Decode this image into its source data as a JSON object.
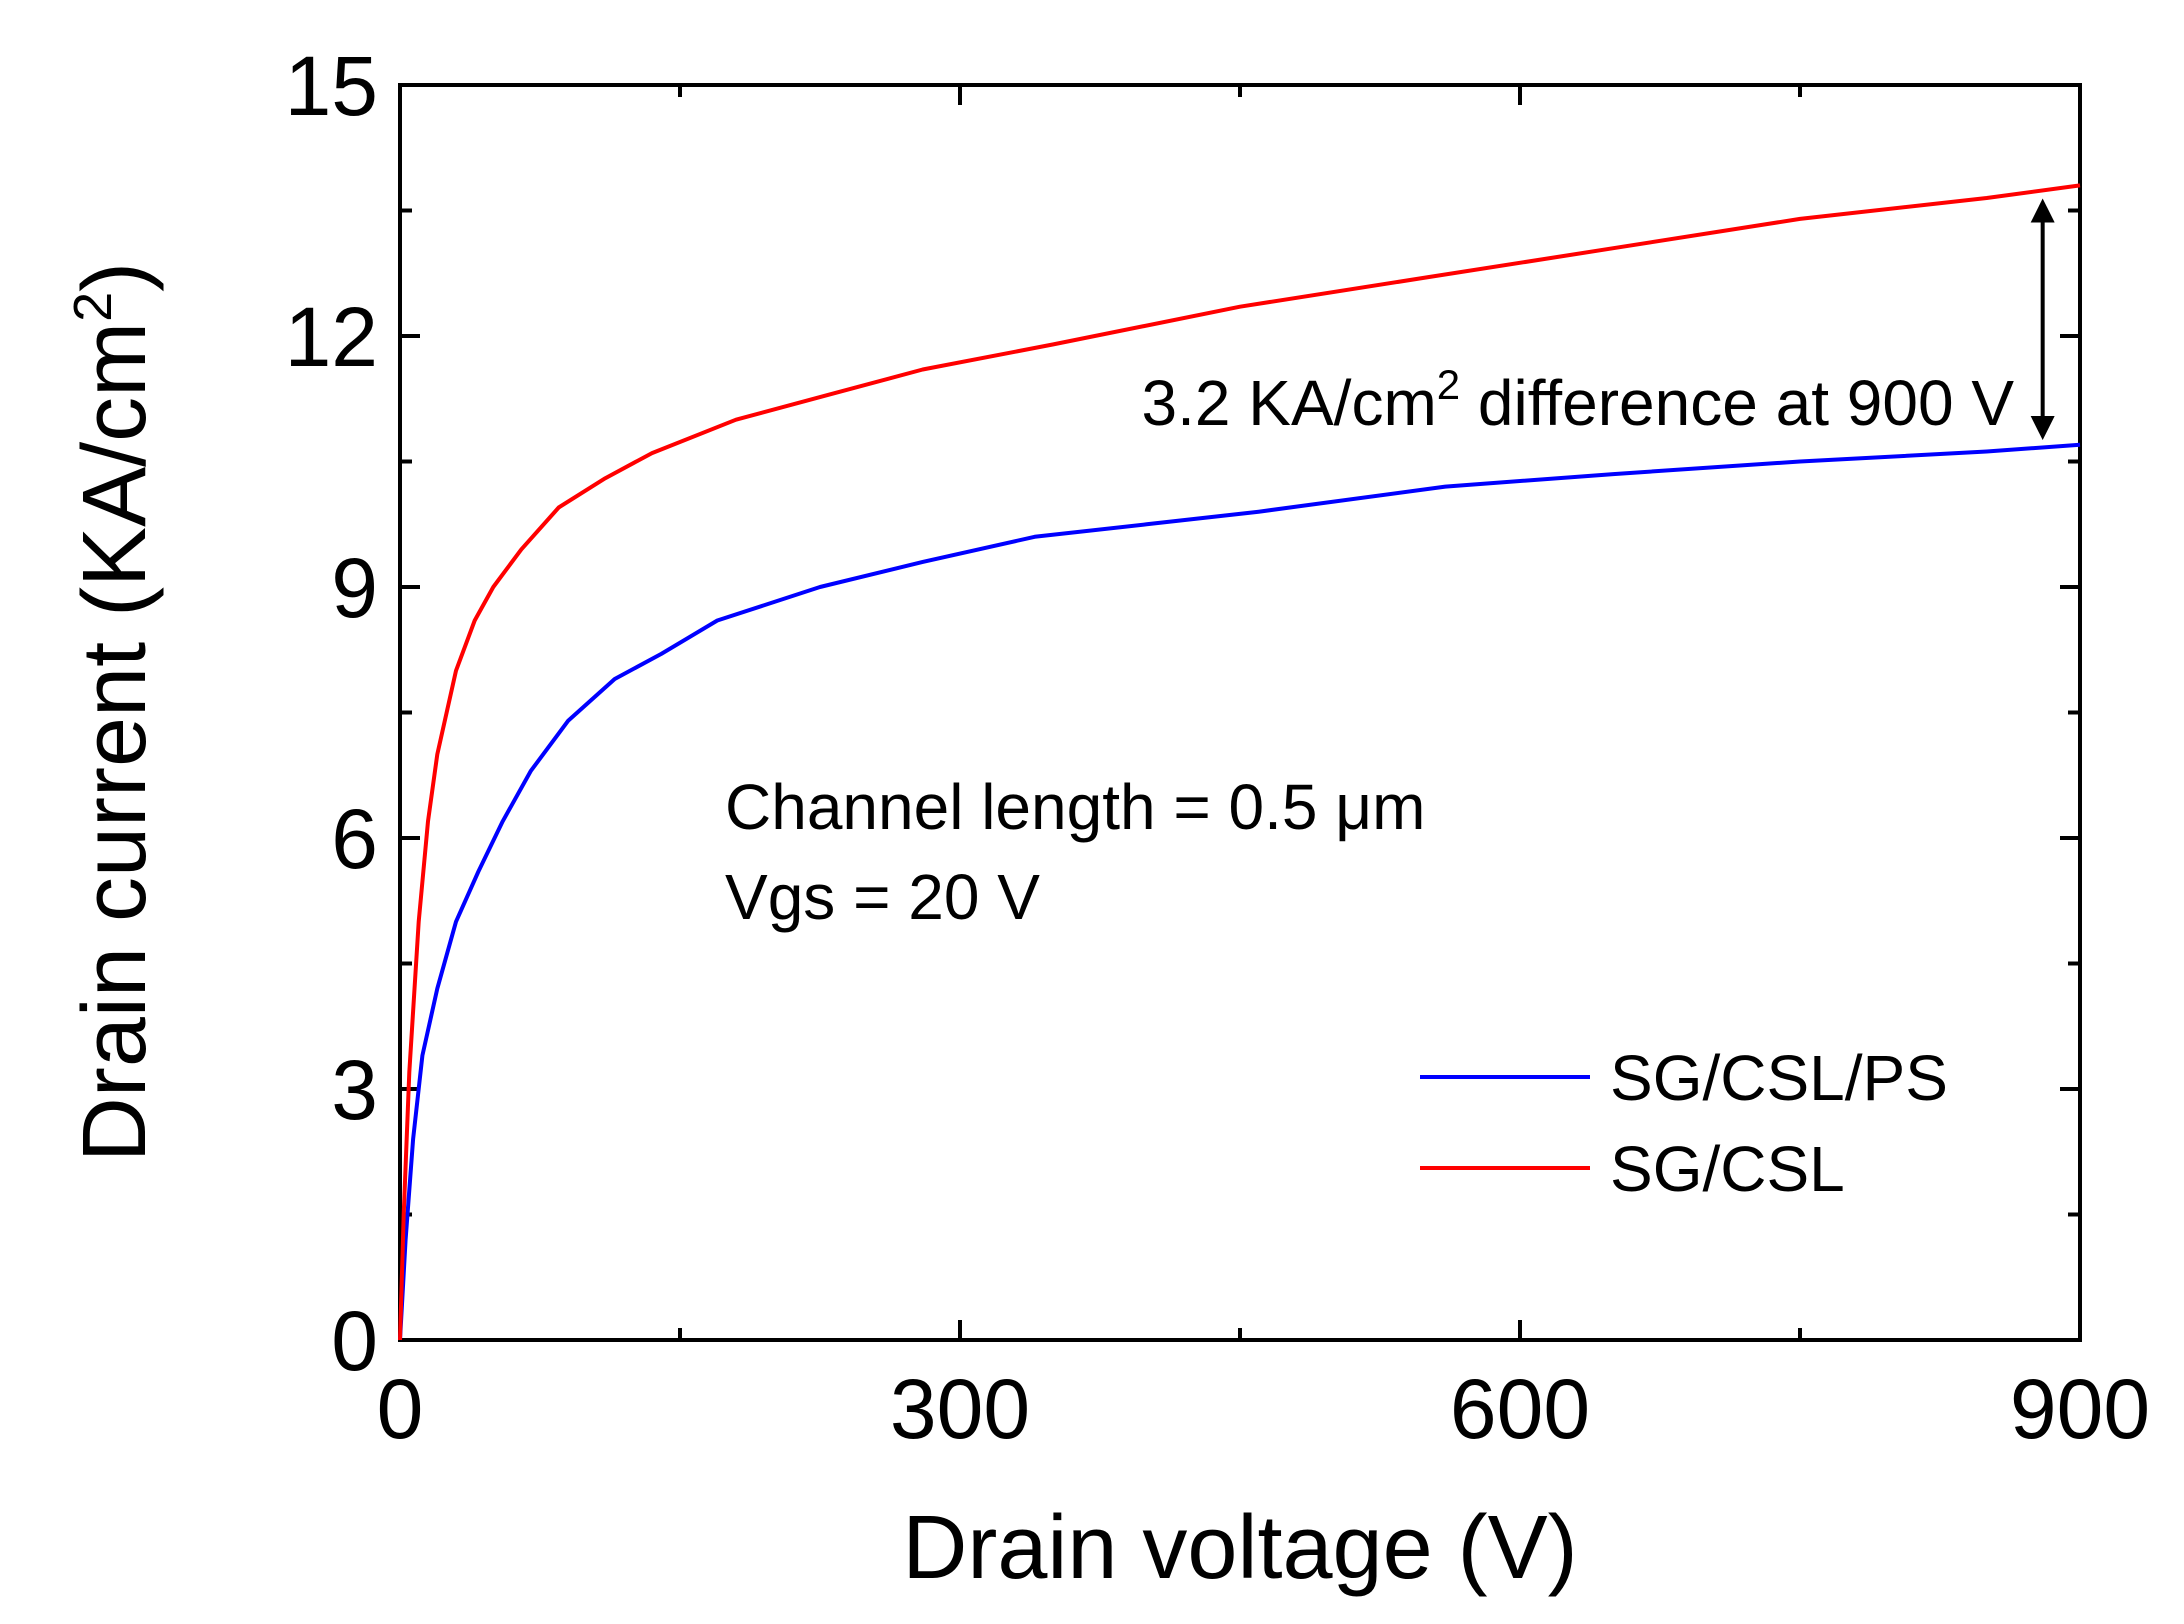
{
  "chart_data": {
    "type": "line",
    "title": "",
    "xlabel": "Drain voltage (V)",
    "ylabel_main": "Drain current (KA/cm",
    "ylabel_sup": "2",
    "ylabel_end": ")",
    "xlim": [
      0,
      900
    ],
    "ylim": [
      0,
      15
    ],
    "xticks": [
      0,
      300,
      600,
      900
    ],
    "yticks": [
      0,
      3,
      6,
      9,
      12,
      15
    ],
    "xtick_labels": [
      "0",
      "300",
      "600",
      "900"
    ],
    "ytick_labels": [
      "0",
      "3",
      "6",
      "9",
      "12",
      "15"
    ],
    "grid": false,
    "legend_position": "bottom-right",
    "series": [
      {
        "name": "SG/CSL/PS",
        "color": "#0000ff",
        "x": [
          0,
          3,
          7,
          12,
          20,
          30,
          42,
          55,
          70,
          90,
          115,
          140,
          170,
          225,
          280,
          340,
          400,
          460,
          560,
          650,
          750,
          850,
          900
        ],
        "y": [
          0,
          1.2,
          2.4,
          3.4,
          4.2,
          5.0,
          5.6,
          6.2,
          6.8,
          7.4,
          7.9,
          8.2,
          8.6,
          9.0,
          9.3,
          9.6,
          9.75,
          9.9,
          10.2,
          10.35,
          10.5,
          10.62,
          10.7
        ]
      },
      {
        "name": "SG/CSL",
        "color": "#ff0000",
        "x": [
          0,
          2,
          5,
          10,
          15,
          20,
          30,
          40,
          50,
          65,
          85,
          110,
          135,
          180,
          230,
          280,
          350,
          450,
          550,
          650,
          750,
          850,
          900
        ],
        "y": [
          0,
          1.5,
          3.2,
          5.0,
          6.2,
          7.0,
          8.0,
          8.6,
          9.0,
          9.45,
          9.95,
          10.3,
          10.6,
          11.0,
          11.3,
          11.6,
          11.9,
          12.35,
          12.7,
          13.05,
          13.4,
          13.65,
          13.8
        ]
      }
    ],
    "annotations": {
      "difference_prefix": "3.2 KA/cm",
      "difference_sup": "2",
      "difference_suffix": " difference at 900 V",
      "arrow_x": 880,
      "arrow_y_top": 13.5,
      "arrow_y_bottom": 10.9,
      "conditions_line1": "Channel length = 0.5 μm",
      "conditions_line2": "Vgs = 20 V"
    }
  }
}
